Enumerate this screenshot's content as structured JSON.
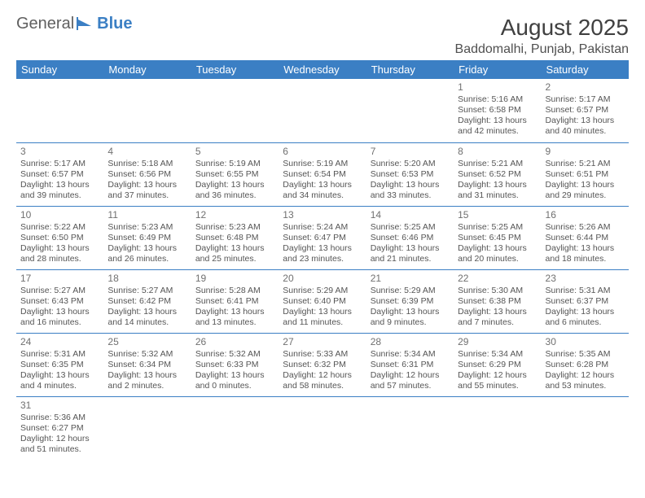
{
  "logo": {
    "text1": "General",
    "text2": "Blue"
  },
  "title": "August 2025",
  "location": "Baddomalhi, Punjab, Pakistan",
  "header_bg": "#3b7fc4",
  "header_fg": "#ffffff",
  "border_color": "#3b7fc4",
  "text_color": "#555555",
  "daynum_color": "#707070",
  "days": [
    "Sunday",
    "Monday",
    "Tuesday",
    "Wednesday",
    "Thursday",
    "Friday",
    "Saturday"
  ],
  "weeks": [
    [
      null,
      null,
      null,
      null,
      null,
      {
        "n": "1",
        "sr": "5:16 AM",
        "ss": "6:58 PM",
        "dl": "13 hours and 42 minutes."
      },
      {
        "n": "2",
        "sr": "5:17 AM",
        "ss": "6:57 PM",
        "dl": "13 hours and 40 minutes."
      }
    ],
    [
      {
        "n": "3",
        "sr": "5:17 AM",
        "ss": "6:57 PM",
        "dl": "13 hours and 39 minutes."
      },
      {
        "n": "4",
        "sr": "5:18 AM",
        "ss": "6:56 PM",
        "dl": "13 hours and 37 minutes."
      },
      {
        "n": "5",
        "sr": "5:19 AM",
        "ss": "6:55 PM",
        "dl": "13 hours and 36 minutes."
      },
      {
        "n": "6",
        "sr": "5:19 AM",
        "ss": "6:54 PM",
        "dl": "13 hours and 34 minutes."
      },
      {
        "n": "7",
        "sr": "5:20 AM",
        "ss": "6:53 PM",
        "dl": "13 hours and 33 minutes."
      },
      {
        "n": "8",
        "sr": "5:21 AM",
        "ss": "6:52 PM",
        "dl": "13 hours and 31 minutes."
      },
      {
        "n": "9",
        "sr": "5:21 AM",
        "ss": "6:51 PM",
        "dl": "13 hours and 29 minutes."
      }
    ],
    [
      {
        "n": "10",
        "sr": "5:22 AM",
        "ss": "6:50 PM",
        "dl": "13 hours and 28 minutes."
      },
      {
        "n": "11",
        "sr": "5:23 AM",
        "ss": "6:49 PM",
        "dl": "13 hours and 26 minutes."
      },
      {
        "n": "12",
        "sr": "5:23 AM",
        "ss": "6:48 PM",
        "dl": "13 hours and 25 minutes."
      },
      {
        "n": "13",
        "sr": "5:24 AM",
        "ss": "6:47 PM",
        "dl": "13 hours and 23 minutes."
      },
      {
        "n": "14",
        "sr": "5:25 AM",
        "ss": "6:46 PM",
        "dl": "13 hours and 21 minutes."
      },
      {
        "n": "15",
        "sr": "5:25 AM",
        "ss": "6:45 PM",
        "dl": "13 hours and 20 minutes."
      },
      {
        "n": "16",
        "sr": "5:26 AM",
        "ss": "6:44 PM",
        "dl": "13 hours and 18 minutes."
      }
    ],
    [
      {
        "n": "17",
        "sr": "5:27 AM",
        "ss": "6:43 PM",
        "dl": "13 hours and 16 minutes."
      },
      {
        "n": "18",
        "sr": "5:27 AM",
        "ss": "6:42 PM",
        "dl": "13 hours and 14 minutes."
      },
      {
        "n": "19",
        "sr": "5:28 AM",
        "ss": "6:41 PM",
        "dl": "13 hours and 13 minutes."
      },
      {
        "n": "20",
        "sr": "5:29 AM",
        "ss": "6:40 PM",
        "dl": "13 hours and 11 minutes."
      },
      {
        "n": "21",
        "sr": "5:29 AM",
        "ss": "6:39 PM",
        "dl": "13 hours and 9 minutes."
      },
      {
        "n": "22",
        "sr": "5:30 AM",
        "ss": "6:38 PM",
        "dl": "13 hours and 7 minutes."
      },
      {
        "n": "23",
        "sr": "5:31 AM",
        "ss": "6:37 PM",
        "dl": "13 hours and 6 minutes."
      }
    ],
    [
      {
        "n": "24",
        "sr": "5:31 AM",
        "ss": "6:35 PM",
        "dl": "13 hours and 4 minutes."
      },
      {
        "n": "25",
        "sr": "5:32 AM",
        "ss": "6:34 PM",
        "dl": "13 hours and 2 minutes."
      },
      {
        "n": "26",
        "sr": "5:32 AM",
        "ss": "6:33 PM",
        "dl": "13 hours and 0 minutes."
      },
      {
        "n": "27",
        "sr": "5:33 AM",
        "ss": "6:32 PM",
        "dl": "12 hours and 58 minutes."
      },
      {
        "n": "28",
        "sr": "5:34 AM",
        "ss": "6:31 PM",
        "dl": "12 hours and 57 minutes."
      },
      {
        "n": "29",
        "sr": "5:34 AM",
        "ss": "6:29 PM",
        "dl": "12 hours and 55 minutes."
      },
      {
        "n": "30",
        "sr": "5:35 AM",
        "ss": "6:28 PM",
        "dl": "12 hours and 53 minutes."
      }
    ],
    [
      {
        "n": "31",
        "sr": "5:36 AM",
        "ss": "6:27 PM",
        "dl": "12 hours and 51 minutes."
      },
      null,
      null,
      null,
      null,
      null,
      null
    ]
  ],
  "labels": {
    "sunrise": "Sunrise:",
    "sunset": "Sunset:",
    "daylight": "Daylight:"
  }
}
